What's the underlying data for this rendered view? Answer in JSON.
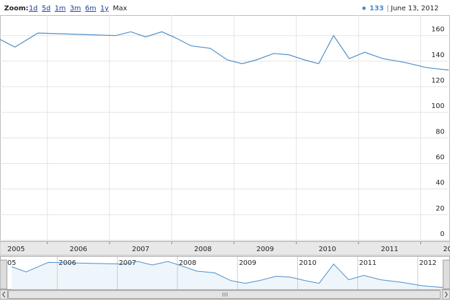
{
  "zoom_label": "Zoom:",
  "zoom_options": [
    "1d",
    "5d",
    "1m",
    "3m",
    "6m",
    "1y",
    "Max"
  ],
  "chart_data": {
    "type": "line",
    "legend_value": 133,
    "legend_date": "June 13, 2012",
    "color": "#4a8cc7",
    "x": [
      2005.24,
      2005.48,
      2005.85,
      2007.1,
      2007.34,
      2007.58,
      2007.84,
      2008.07,
      2008.31,
      2008.62,
      2008.89,
      2009.13,
      2009.36,
      2009.64,
      2009.88,
      2010.13,
      2010.36,
      2010.6,
      2010.85,
      2011.1,
      2011.39,
      2011.74,
      2012.09,
      2012.45
    ],
    "values": [
      157,
      151,
      162,
      160,
      163,
      159,
      163,
      158,
      152,
      150,
      141,
      138,
      141,
      146,
      145,
      141,
      138,
      160,
      142,
      147,
      142,
      139,
      135,
      133
    ],
    "xlim": [
      2005.24,
      2012.47
    ],
    "xticks": [
      2005,
      2006,
      2007,
      2008,
      2009,
      2010,
      2011,
      2012
    ],
    "ylim": [
      0,
      176
    ],
    "yticks": [
      0,
      20,
      40,
      60,
      80,
      100,
      120,
      140,
      160
    ],
    "grid": true
  }
}
